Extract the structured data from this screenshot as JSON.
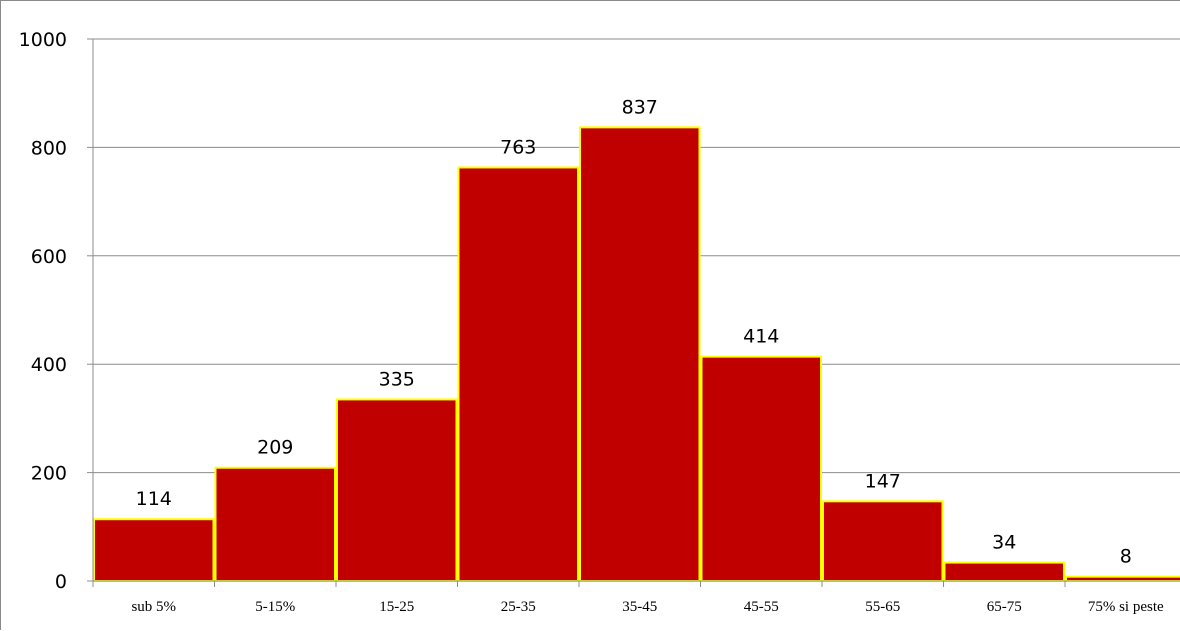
{
  "chart_data": {
    "type": "bar",
    "title": "",
    "xlabel": "",
    "ylabel": "",
    "categories": [
      "sub 5%",
      "5-15%",
      "15-25",
      "25-35",
      "35-45",
      "45-55",
      "55-65",
      "65-75",
      "75% si peste"
    ],
    "values": [
      114,
      209,
      335,
      763,
      837,
      414,
      147,
      34,
      8
    ],
    "data_labels": [
      "114",
      "209",
      "335",
      "763",
      "837",
      "414",
      "147",
      "34",
      "8"
    ],
    "ylim": [
      0,
      1000
    ],
    "yticks": [
      0,
      200,
      400,
      600,
      800,
      1000
    ],
    "ytick_labels": [
      "0",
      "200",
      "400",
      "600",
      "800",
      "1000"
    ],
    "grid": "horizontal",
    "legend": "none",
    "colors": {
      "bar_fill": "#c00000",
      "bar_border": "#ffff00",
      "grid": "#8c8c8c",
      "axis": "#8c8c8c"
    }
  }
}
